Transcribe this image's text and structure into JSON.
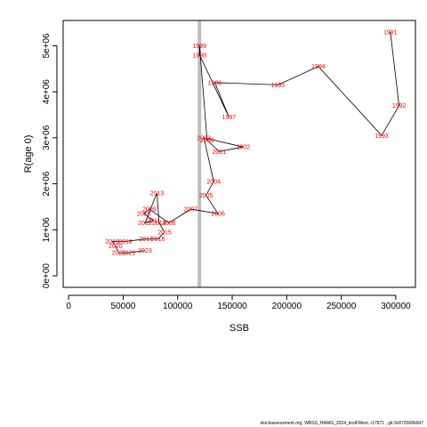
{
  "chart_data": {
    "type": "scatter",
    "title": "",
    "xlabel": "SSB",
    "ylabel": "R(age 0)",
    "xlim": [
      -5000,
      318000
    ],
    "ylim": [
      -250000,
      5550000
    ],
    "x_ticks": [
      0,
      50000,
      100000,
      150000,
      200000,
      250000,
      300000
    ],
    "x_tick_labels": [
      "0",
      "50000",
      "100000",
      "150000",
      "200000",
      "250000",
      "300000"
    ],
    "y_ticks": [
      0,
      1000000,
      2000000,
      3000000,
      4000000,
      5000000
    ],
    "y_tick_labels": [
      "0e+00",
      "1e+06",
      "2e+06",
      "3e+06",
      "4e+06",
      "5e+06"
    ],
    "grid": false,
    "legend": "none",
    "point_label_color": "#ff0000",
    "line_color": "#000000",
    "reference_line": {
      "x": 120000,
      "color": "#bebebe"
    },
    "series": [
      {
        "points": [
          {
            "label": "1991",
            "x": 295000,
            "y": 5300000
          },
          {
            "label": "1992",
            "x": 303000,
            "y": 3700000
          },
          {
            "label": "1993",
            "x": 287000,
            "y": 3050000
          },
          {
            "label": "1994",
            "x": 229000,
            "y": 4550000
          },
          {
            "label": "1995",
            "x": 192000,
            "y": 4150000
          },
          {
            "label": "1996",
            "x": 134000,
            "y": 4200000
          },
          {
            "label": "1997",
            "x": 147000,
            "y": 3450000
          },
          {
            "label": "1998",
            "x": 120000,
            "y": 4800000
          },
          {
            "label": "1999",
            "x": 120000,
            "y": 5000000
          },
          {
            "label": "2000",
            "x": 127000,
            "y": 2950000
          },
          {
            "label": "2001",
            "x": 138000,
            "y": 2700000
          },
          {
            "label": "2002",
            "x": 160000,
            "y": 2800000
          },
          {
            "label": "2003",
            "x": 124000,
            "y": 3000000
          },
          {
            "label": "2004",
            "x": 133000,
            "y": 2050000
          },
          {
            "label": "2005",
            "x": 126000,
            "y": 1750000
          },
          {
            "label": "2006",
            "x": 137000,
            "y": 1350000
          },
          {
            "label": "2007",
            "x": 112000,
            "y": 1450000
          },
          {
            "label": "2008",
            "x": 92000,
            "y": 1150000
          },
          {
            "label": "2009",
            "x": 74000,
            "y": 1450000
          },
          {
            "label": "2010",
            "x": 69000,
            "y": 1350000
          },
          {
            "label": "2011",
            "x": 78000,
            "y": 1200000
          },
          {
            "label": "2012",
            "x": 70000,
            "y": 1150000
          },
          {
            "label": "2013",
            "x": 81000,
            "y": 1800000
          },
          {
            "label": "2014",
            "x": 83000,
            "y": 1150000
          },
          {
            "label": "2015",
            "x": 88000,
            "y": 950000
          },
          {
            "label": "2016",
            "x": 82000,
            "y": 800000
          },
          {
            "label": "2017",
            "x": 71000,
            "y": 800000
          },
          {
            "label": "2018",
            "x": 52000,
            "y": 750000
          },
          {
            "label": "2019",
            "x": 40000,
            "y": 750000
          },
          {
            "label": "2020",
            "x": 43000,
            "y": 650000
          },
          {
            "label": "2021",
            "x": 46000,
            "y": 500000
          },
          {
            "label": "2022",
            "x": 55000,
            "y": 500000
          },
          {
            "label": "2023",
            "x": 70000,
            "y": 550000
          }
        ]
      }
    ]
  },
  "footer": {
    "text": "stockassessment.org, WBSS_HAWG_2024_testFMest, r17871 , git:3c872568b0d7"
  }
}
